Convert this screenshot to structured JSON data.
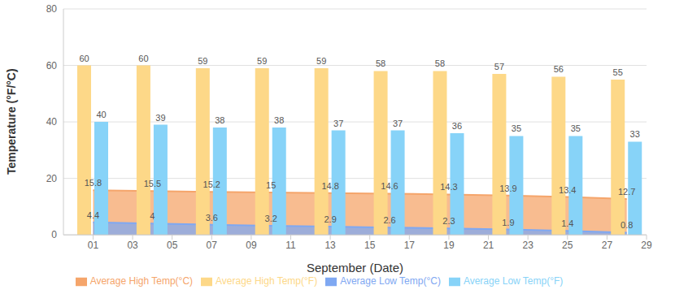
{
  "chart_data": {
    "type": "bar",
    "x_label": "September (Date)",
    "y_label": "Temperature (°F/°C)",
    "x": [
      1,
      4,
      7,
      10,
      13,
      16,
      19,
      22,
      25,
      28
    ],
    "xlim": [
      -0.5,
      29
    ],
    "xticks": [
      {
        "value": 1,
        "label": "01"
      },
      {
        "value": 3,
        "label": "03"
      },
      {
        "value": 5,
        "label": "05"
      },
      {
        "value": 7,
        "label": "07"
      },
      {
        "value": 9,
        "label": "09"
      },
      11,
      13,
      15,
      17,
      19,
      21,
      23,
      25,
      27,
      29
    ],
    "ylim": [
      0,
      80
    ],
    "yticks": [
      0,
      20,
      40,
      60,
      80
    ],
    "grid": true,
    "legend": "bottom",
    "data_labels": true,
    "series": [
      {
        "name": "Average High Temp(°F)",
        "type": "bar",
        "color": "#fdd888",
        "values": [
          60,
          60,
          59,
          59,
          59,
          58,
          58,
          57,
          56,
          55
        ]
      },
      {
        "name": "Average Low Temp(°F)",
        "type": "bar",
        "color": "#87d3f8",
        "values": [
          40,
          39,
          38,
          38,
          37,
          37,
          36,
          35,
          35,
          33
        ]
      },
      {
        "name": "Average High Temp(°C)",
        "type": "area",
        "color": "#f5a56b",
        "values": [
          15.8,
          15.5,
          15.2,
          15,
          14.8,
          14.6,
          14.3,
          13.9,
          13.4,
          12.7
        ]
      },
      {
        "name": "Average Low Temp(°C)",
        "type": "area",
        "color": "#7fa8f2",
        "values": [
          4.4,
          4,
          3.6,
          3.2,
          2.9,
          2.6,
          2.3,
          1.9,
          1.4,
          0.8
        ]
      }
    ]
  }
}
